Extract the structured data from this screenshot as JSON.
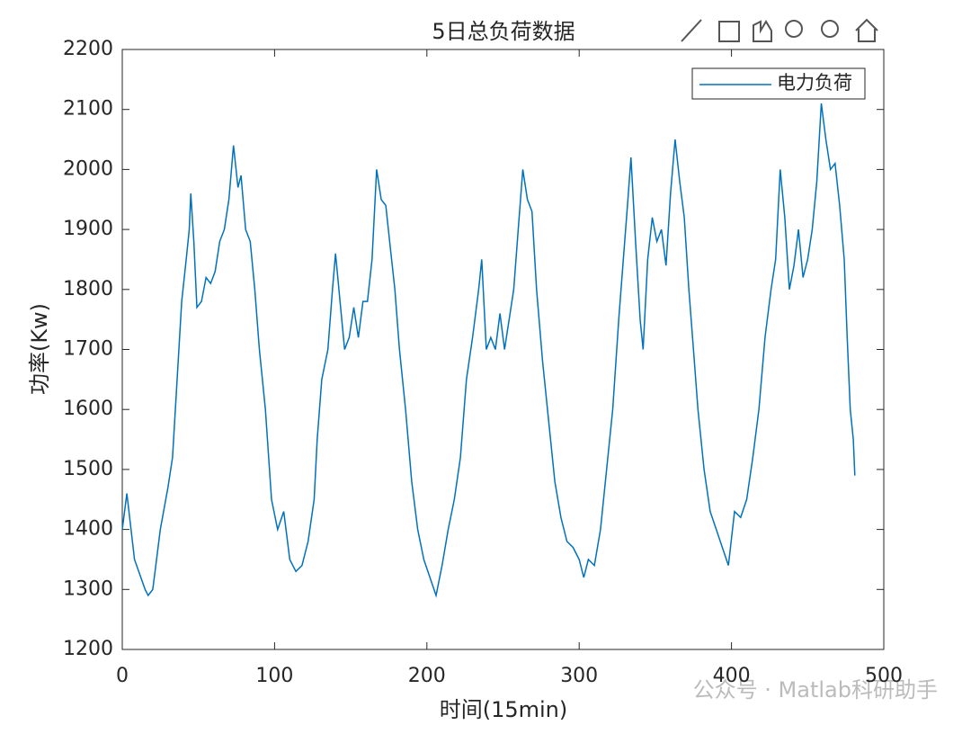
{
  "chart_data": {
    "type": "line",
    "title": "5日总负荷数据",
    "xlabel": "时间(15min)",
    "ylabel": "功率(Kw)",
    "x": [
      0,
      3,
      8,
      15,
      17,
      20,
      22,
      25,
      30,
      33,
      36,
      39,
      42,
      44,
      45,
      47,
      49,
      52,
      55,
      58,
      61,
      64,
      67,
      70,
      73,
      76,
      78,
      81,
      84,
      87,
      90,
      94,
      98,
      102,
      106,
      110,
      114,
      118,
      122,
      126,
      128,
      131,
      135,
      138,
      140,
      143,
      146,
      149,
      152,
      155,
      158,
      161,
      164,
      167,
      170,
      173,
      176,
      179,
      182,
      186,
      190,
      194,
      198,
      202,
      206,
      210,
      214,
      218,
      222,
      226,
      230,
      234,
      236,
      239,
      242,
      245,
      248,
      251,
      254,
      257,
      260,
      263,
      266,
      269,
      272,
      276,
      280,
      284,
      288,
      292,
      296,
      300,
      303,
      306,
      310,
      314,
      318,
      322,
      326,
      329,
      332,
      334,
      337,
      340,
      342,
      345,
      348,
      351,
      354,
      357,
      360,
      363,
      366,
      369,
      372,
      375,
      378,
      382,
      386,
      390,
      394,
      398,
      402,
      406,
      410,
      414,
      418,
      422,
      426,
      429,
      432,
      435,
      438,
      441,
      444,
      447,
      450,
      453,
      456,
      459,
      462,
      465,
      468,
      471,
      474,
      476,
      478,
      480,
      481
    ],
    "series": [
      {
        "name": "电力负荷",
        "color": "#0072bd",
        "values": [
          1400,
          1460,
          1350,
          1300,
          1290,
          1300,
          1340,
          1400,
          1470,
          1520,
          1650,
          1780,
          1850,
          1900,
          1960,
          1880,
          1770,
          1780,
          1820,
          1810,
          1830,
          1880,
          1900,
          1950,
          2040,
          1970,
          1990,
          1900,
          1880,
          1800,
          1700,
          1600,
          1450,
          1400,
          1430,
          1350,
          1330,
          1340,
          1380,
          1450,
          1550,
          1650,
          1700,
          1800,
          1860,
          1780,
          1700,
          1720,
          1770,
          1720,
          1780,
          1780,
          1850,
          2000,
          1950,
          1940,
          1870,
          1800,
          1700,
          1600,
          1480,
          1400,
          1350,
          1320,
          1290,
          1340,
          1400,
          1450,
          1520,
          1650,
          1720,
          1800,
          1850,
          1700,
          1720,
          1700,
          1760,
          1700,
          1750,
          1800,
          1900,
          2000,
          1950,
          1930,
          1800,
          1680,
          1580,
          1480,
          1420,
          1380,
          1370,
          1350,
          1320,
          1350,
          1340,
          1400,
          1500,
          1600,
          1750,
          1850,
          1950,
          2020,
          1880,
          1750,
          1700,
          1850,
          1920,
          1880,
          1900,
          1840,
          1960,
          2050,
          1980,
          1920,
          1800,
          1700,
          1600,
          1500,
          1430,
          1400,
          1370,
          1340,
          1430,
          1420,
          1450,
          1520,
          1600,
          1720,
          1800,
          1850,
          2000,
          1920,
          1800,
          1840,
          1900,
          1820,
          1850,
          1900,
          1980,
          2110,
          2050,
          2000,
          2010,
          1940,
          1850,
          1720,
          1600,
          1550,
          1490
        ]
      }
    ],
    "xlim": [
      0,
      500
    ],
    "xticks": [
      0,
      100,
      200,
      300,
      400,
      500
    ],
    "ylim": [
      1200,
      2200
    ],
    "yticks": [
      1200,
      1300,
      1400,
      1500,
      1600,
      1700,
      1800,
      1900,
      2000,
      2100,
      2200
    ],
    "legend": "upper right",
    "watermark": "公众号 · Matlab科研助手"
  }
}
